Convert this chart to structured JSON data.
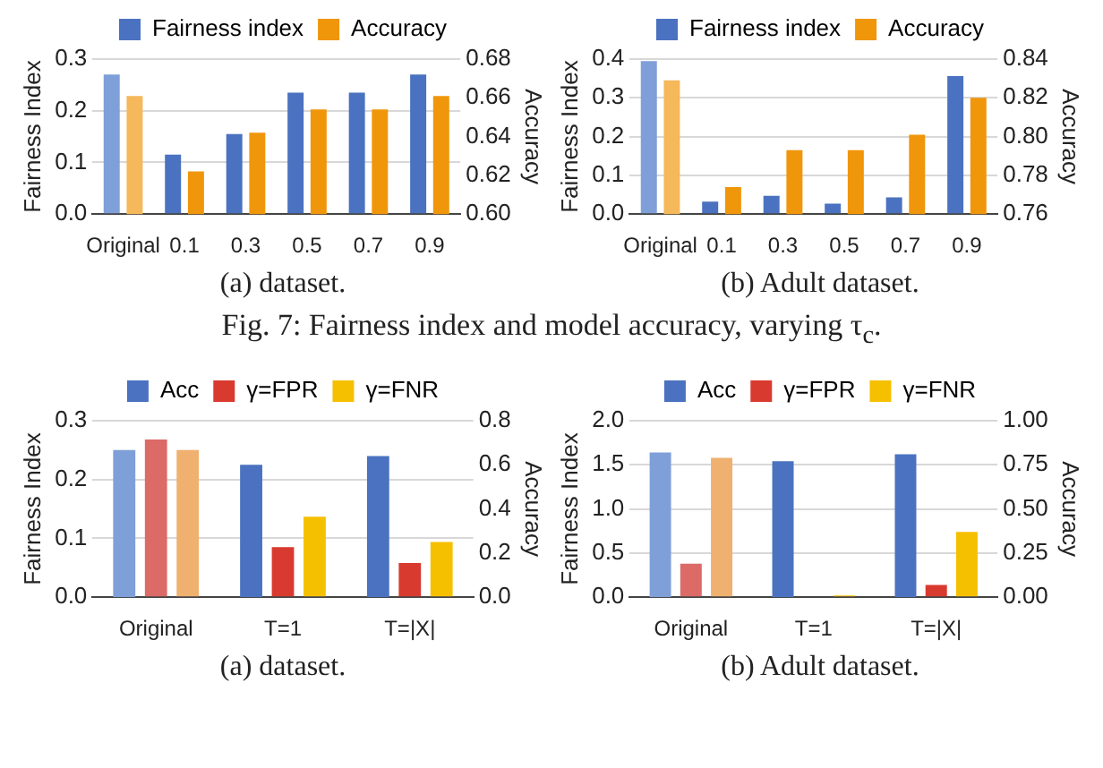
{
  "chart_data": [
    {
      "type": "bar",
      "categories": [
        "Original",
        "0.1",
        "0.3",
        "0.5",
        "0.7",
        "0.9"
      ],
      "ylabel": "Fairness Index",
      "y2label": "Accuracy",
      "series": [
        {
          "name": "Fairness index",
          "color": "#4a72c0",
          "colors": [
            "#7f9fd8",
            "#4a72c0",
            "#4a72c0",
            "#4a72c0",
            "#4a72c0",
            "#4a72c0"
          ],
          "values": [
            0.27,
            0.115,
            0.155,
            0.235,
            0.235,
            0.27
          ]
        },
        {
          "name": "Accuracy",
          "color": "#f0960a",
          "colors": [
            "#f5b85a",
            "#f0960a",
            "#f0960a",
            "#f0960a",
            "#f0960a",
            "#f0960a"
          ],
          "values": [
            0.661,
            0.622,
            0.642,
            0.654,
            0.654,
            0.661
          ],
          "axis": "y2"
        }
      ],
      "ylim": [
        0,
        0.3
      ],
      "yticks": [
        {
          "value": 0,
          "label": "0.0"
        },
        0.1,
        0.2,
        0.3
      ],
      "y2lim": [
        0.6,
        0.68
      ],
      "y2ticks": [
        {
          "value": 0.6,
          "label": "0.60"
        },
        0.62,
        0.64,
        0.66,
        0.68
      ],
      "grid": "y",
      "legend": "top",
      "annotations": [
        "(a) dataset."
      ]
    },
    {
      "type": "bar",
      "categories": [
        "Original",
        "0.1",
        "0.3",
        "0.5",
        "0.7",
        "0.9"
      ],
      "ylabel": "Fairness Index",
      "y2label": "Accuracy",
      "series": [
        {
          "name": "Fairness index",
          "color": "#4a72c0",
          "colors": [
            "#7f9fd8",
            "#4a72c0",
            "#4a72c0",
            "#4a72c0",
            "#4a72c0",
            "#4a72c0"
          ],
          "values": [
            0.395,
            0.032,
            0.047,
            0.027,
            0.043,
            0.356
          ]
        },
        {
          "name": "Accuracy",
          "color": "#f0960a",
          "colors": [
            "#f5b85a",
            "#f0960a",
            "#f0960a",
            "#f0960a",
            "#f0960a",
            "#f0960a"
          ],
          "values": [
            0.829,
            0.774,
            0.793,
            0.793,
            0.801,
            0.82
          ],
          "axis": "y2"
        }
      ],
      "ylim": [
        0,
        0.4
      ],
      "yticks": [
        {
          "value": 0,
          "label": "0.0"
        },
        0.1,
        0.2,
        0.3,
        0.4
      ],
      "y2lim": [
        0.76,
        0.84
      ],
      "y2ticks": [
        0.76,
        0.78,
        {
          "value": 0.8,
          "label": "0.80"
        },
        0.82,
        0.84
      ],
      "grid": "y",
      "legend": "top",
      "annotations": [
        "(b) Adult dataset.",
        "Fig. 7: Fairness index and model accuracy, varying τ$_{c}$."
      ]
    },
    {
      "type": "bar",
      "categories": [
        "Original",
        "T=1",
        "T=|X|"
      ],
      "ylabel": "Fairness Index",
      "y2label": "Accuracy",
      "series": [
        {
          "name": "Acc",
          "color": "#4a72c0",
          "colors": [
            "#7f9fd8",
            "#4a72c0",
            "#4a72c0"
          ],
          "values": [
            0.667,
            0.6,
            0.64
          ],
          "axis": "y2"
        },
        {
          "name": "γ=FPR",
          "color": "#d93a30",
          "colors": [
            "#dc6a66",
            "#d93a30",
            "#d93a30"
          ],
          "values": [
            0.268,
            0.085,
            0.058
          ]
        },
        {
          "name": "γ=FNR",
          "color": "#f5c000",
          "colors": [
            "#efb070",
            "#f5c000",
            "#f5c000"
          ],
          "values": [
            0.25,
            0.137,
            0.094
          ]
        }
      ],
      "ylim": [
        0,
        0.3
      ],
      "yticks": [
        {
          "value": 0,
          "label": "0.0"
        },
        0.1,
        0.2,
        0.3
      ],
      "y2lim": [
        0,
        0.8
      ],
      "y2ticks": [
        {
          "value": 0,
          "label": "0.0"
        },
        0.2,
        0.4,
        0.6,
        0.8
      ],
      "grid": "y",
      "legend": "top",
      "annotations": [
        "(a) dataset."
      ]
    },
    {
      "type": "bar",
      "categories": [
        "Original",
        "T=1",
        "T=|X|"
      ],
      "ylabel": "Fairness Index",
      "y2label": "Accuracy",
      "series": [
        {
          "name": "Acc",
          "color": "#4a72c0",
          "colors": [
            "#7f9fd8",
            "#4a72c0",
            "#4a72c0"
          ],
          "values": [
            0.82,
            0.77,
            0.81
          ],
          "axis": "y2"
        },
        {
          "name": "γ=FPR",
          "color": "#d93a30",
          "colors": [
            "#dc6a66",
            "#d93a30",
            "#d93a30"
          ],
          "values": [
            0.38,
            0,
            0.14
          ]
        },
        {
          "name": "γ=FNR",
          "color": "#f5c000",
          "colors": [
            "#efb070",
            "#f5c000",
            "#f5c000"
          ],
          "values": [
            1.58,
            0.02,
            0.74
          ]
        }
      ],
      "ylim": [
        0,
        2
      ],
      "yticks": [
        {
          "value": 0,
          "label": "0.0"
        },
        0.5,
        {
          "value": 1,
          "label": "1.0"
        },
        1.5,
        {
          "value": 2,
          "label": "2.0"
        }
      ],
      "y2lim": [
        0,
        1
      ],
      "y2ticks": [
        {
          "value": 0,
          "label": "0.00"
        },
        0.25,
        {
          "value": 0.5,
          "label": "0.50"
        },
        0.75,
        {
          "value": 1,
          "label": "1.00"
        }
      ],
      "grid": "y",
      "legend": "top",
      "annotations": [
        "(b) Adult dataset."
      ]
    }
  ]
}
